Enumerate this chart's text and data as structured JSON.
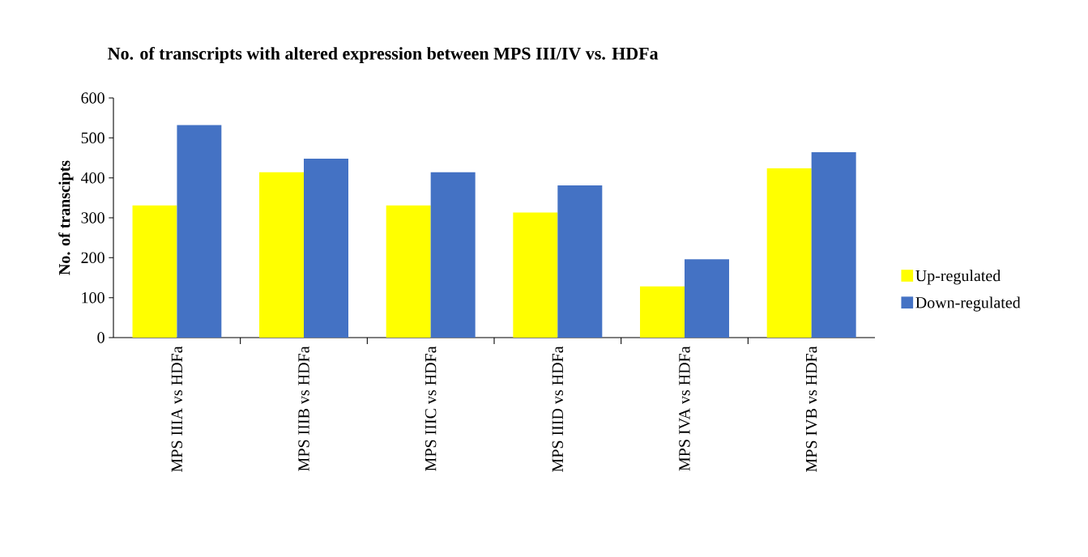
{
  "chart_data": {
    "type": "bar",
    "title": "No. of transcripts with altered expression between MPS III/IV vs. HDFa",
    "ylabel": "No. of transcipts",
    "categories": [
      "MPS IIIA vs HDFa",
      "MPS IIIB vs HDFa",
      "MPS IIIC vs HDFa",
      "MPS IIID vs HDFa",
      "MPS IVA vs HDFa",
      "MPS IVB vs HDFa"
    ],
    "series": [
      {
        "name": "Up-regulated",
        "color": "#ffff00",
        "values": [
          331,
          414,
          331,
          313,
          128,
          424
        ]
      },
      {
        "name": "Down-regulated",
        "color": "#4472c4",
        "values": [
          532,
          448,
          414,
          381,
          196,
          464
        ]
      }
    ],
    "ylim": [
      0,
      600
    ],
    "yticks": [
      0,
      100,
      200,
      300,
      400,
      500,
      600
    ],
    "grid": false,
    "legend": "right"
  }
}
